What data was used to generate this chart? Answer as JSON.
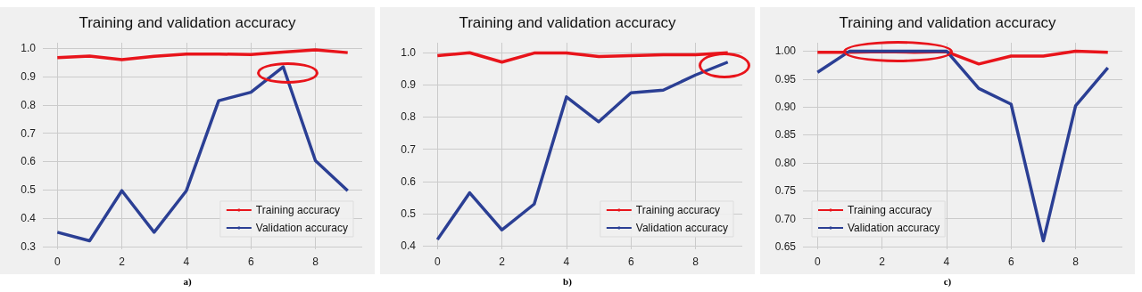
{
  "chart_data": [
    {
      "type": "line",
      "title": "Training and validation accuracy",
      "x": [
        0,
        1,
        2,
        3,
        4,
        5,
        6,
        7,
        8,
        9
      ],
      "xlim": [
        -0.45,
        9.45
      ],
      "xticks": [
        0,
        2,
        4,
        6,
        8
      ],
      "ylim": [
        0.29,
        1.02
      ],
      "yticks": [
        0.3,
        0.4,
        0.5,
        0.6,
        0.7,
        0.8,
        0.9,
        {
          "value": 1.0,
          "label": "1.0"
        }
      ],
      "grid": true,
      "legend": "bottom right",
      "annotations": [
        "a)"
      ],
      "series": [
        {
          "name": "Training accuracy",
          "color": "#e8141b",
          "values": [
            0.967,
            0.973,
            0.96,
            0.972,
            0.98,
            0.98,
            0.978,
            0.987,
            0.995,
            0.985
          ]
        },
        {
          "name": "Validation accuracy",
          "color": "#2b3f94",
          "values": [
            0.35,
            0.32,
            0.497,
            0.35,
            0.497,
            0.815,
            0.845,
            0.935,
            0.603,
            0.497
          ]
        }
      ]
    },
    {
      "type": "line",
      "title": "Training and validation accuracy",
      "x": [
        0,
        1,
        2,
        3,
        4,
        5,
        6,
        7,
        8,
        9
      ],
      "xlim": [
        -0.45,
        9.45
      ],
      "xticks": [
        0,
        2,
        4,
        6,
        8
      ],
      "ylim": [
        0.39,
        1.03
      ],
      "yticks": [
        0.4,
        0.5,
        0.6,
        0.7,
        0.8,
        0.9,
        {
          "value": 1.0,
          "label": "1.0"
        }
      ],
      "grid": true,
      "legend": "bottom right",
      "annotations": [
        "b)"
      ],
      "series": [
        {
          "name": "Training accuracy",
          "color": "#e8141b",
          "values": [
            0.99,
            0.999,
            0.97,
            0.998,
            0.998,
            0.987,
            0.99,
            0.993,
            0.993,
            0.999
          ]
        },
        {
          "name": "Validation accuracy",
          "color": "#2b3f94",
          "values": [
            0.42,
            0.565,
            0.45,
            0.53,
            0.862,
            0.785,
            0.875,
            0.883,
            0.93,
            0.97
          ]
        }
      ]
    },
    {
      "type": "line",
      "title": "Training and validation accuracy",
      "x": [
        0,
        1,
        2,
        3,
        4,
        5,
        6,
        7,
        8,
        9
      ],
      "xlim": [
        -0.45,
        9.45
      ],
      "xticks": [
        0,
        2,
        4,
        6,
        8
      ],
      "ylim": [
        0.645,
        1.015
      ],
      "yticks": [
        {
          "value": 0.65,
          "label": "0.65"
        },
        {
          "value": 0.7,
          "label": "0.70"
        },
        {
          "value": 0.75,
          "label": "0.75"
        },
        {
          "value": 0.8,
          "label": "0.80"
        },
        {
          "value": 0.85,
          "label": "0.85"
        },
        {
          "value": 0.9,
          "label": "0.90"
        },
        {
          "value": 0.95,
          "label": "0.95"
        },
        {
          "value": 1.0,
          "label": "1.00"
        }
      ],
      "grid": true,
      "legend": "bottom left",
      "annotations": [
        "c)"
      ],
      "series": [
        {
          "name": "Training accuracy",
          "color": "#e8141b",
          "values": [
            0.998,
            0.998,
            0.999,
            0.998,
            0.999,
            0.977,
            0.991,
            0.991,
            1.0,
            0.998
          ]
        },
        {
          "name": "Validation accuracy",
          "color": "#2b3f94",
          "values": [
            0.962,
            1.0,
            1.0,
            1.0,
            1.0,
            0.933,
            0.905,
            0.66,
            0.902,
            0.97
          ]
        }
      ]
    }
  ]
}
